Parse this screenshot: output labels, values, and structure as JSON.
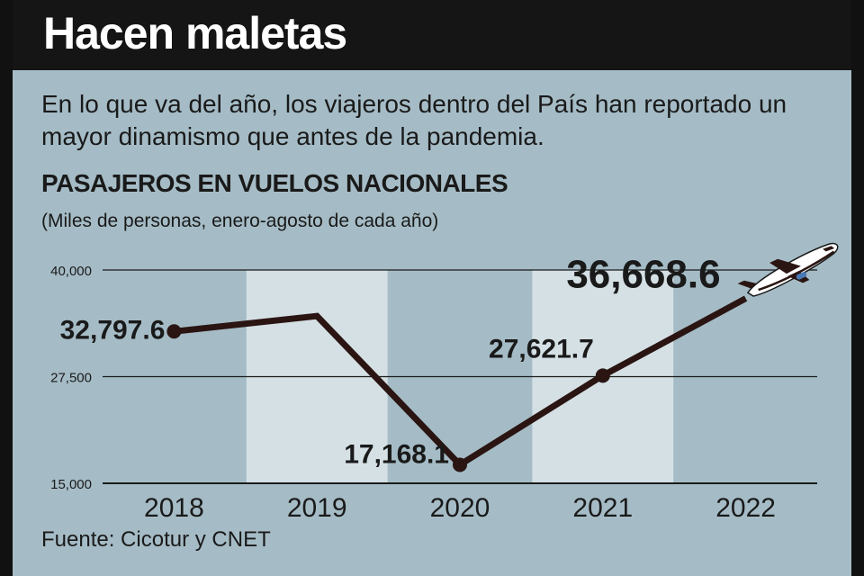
{
  "header": {
    "title": "Hacen maletas"
  },
  "subtitle": "En lo que va del año, los viajeros dentro del País han reportado un mayor dinamismo que antes de la pandemia.",
  "source": "Fuente: Cicotur y CNET",
  "icons": {
    "plane": "airplane-icon"
  },
  "colors": {
    "background": "#a5bcc6",
    "header": "#151515",
    "line": "#2a1512",
    "band": "#d5e0e5"
  },
  "chart_data": {
    "type": "line",
    "title": "PASAJEROS EN VUELOS NACIONALES",
    "units": "(Miles de personas, enero-agosto de cada año)",
    "xlabel": "",
    "ylabel": "",
    "categories": [
      "2018",
      "2019",
      "2020",
      "2021",
      "2022"
    ],
    "values": [
      32797.6,
      34600,
      17168.1,
      27621.7,
      36668.6
    ],
    "data_labels": [
      "32,797.6",
      "",
      "17,168.1",
      "27,621.7",
      "36,668.6"
    ],
    "ylim": [
      15000,
      40000
    ],
    "yticks": [
      15000,
      27500,
      40000
    ],
    "ytick_labels": [
      "15,000",
      "27,500",
      "40,000"
    ],
    "grid": true
  }
}
